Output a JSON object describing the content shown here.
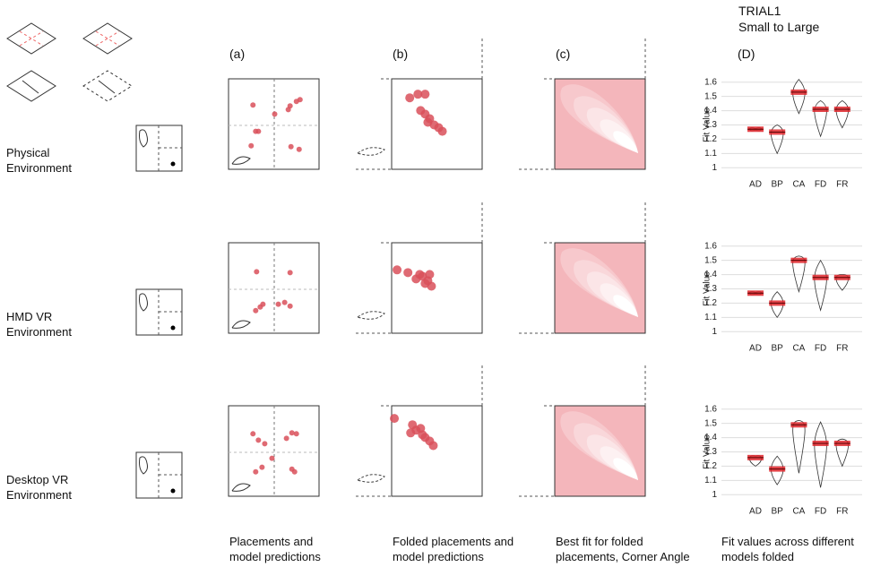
{
  "header": {
    "title": "TRIAL1",
    "subtitle": "Small to Large"
  },
  "panel_labels": [
    "(a)",
    "(b)",
    "(c)",
    "(D)"
  ],
  "captions": [
    "Placements and model predictions",
    "Folded placements and model predictions",
    "Best fit for folded placements, Corner Angle",
    "Fit values across different models folded"
  ],
  "rows": [
    {
      "label": "Physical Environment",
      "placements": {
        "x": [
          27,
          30,
          33,
          25,
          51,
          66,
          75,
          79,
          68,
          69,
          78
        ],
        "y": [
          71,
          42,
          42,
          26,
          61,
          66,
          75,
          77,
          70,
          25,
          22
        ]
      },
      "folded": {
        "x": [
          20,
          29,
          37,
          37,
          42,
          47,
          52,
          56,
          40,
          32
        ],
        "y": [
          79,
          83,
          83,
          61,
          56,
          49,
          46,
          42,
          52,
          65
        ]
      },
      "chart": {
        "type": "violin",
        "ylabel": "Fit Value",
        "categories": [
          "AD",
          "BP",
          "CA",
          "FD",
          "FR"
        ],
        "values": [
          1.27,
          1.25,
          1.53,
          1.41,
          1.41
        ],
        "mins": [
          1.265,
          1.1,
          1.38,
          1.22,
          1.28
        ],
        "maxs": [
          1.275,
          1.3,
          1.62,
          1.47,
          1.47
        ],
        "color": "#e0262b",
        "ylim": [
          0.97,
          1.63
        ],
        "yticks": [
          1,
          1.1,
          1.2,
          1.3,
          1.4,
          1.5,
          1.6
        ],
        "grid": true
      }
    },
    {
      "label": "HMD VR Environment",
      "placements": {
        "x": [
          31,
          68,
          35,
          30,
          55,
          62,
          68,
          38
        ],
        "y": [
          68,
          67,
          29,
          25,
          32,
          34,
          30,
          32
        ]
      },
      "folded": {
        "x": [
          6,
          18,
          27,
          34,
          40,
          44,
          37,
          31,
          42
        ],
        "y": [
          70,
          67,
          60,
          63,
          58,
          52,
          55,
          65,
          65
        ]
      },
      "chart": {
        "type": "violin",
        "ylabel": "Fit Value",
        "categories": [
          "AD",
          "BP",
          "CA",
          "FD",
          "FR"
        ],
        "values": [
          1.27,
          1.2,
          1.5,
          1.38,
          1.38
        ],
        "mins": [
          1.265,
          1.1,
          1.28,
          1.15,
          1.29
        ],
        "maxs": [
          1.275,
          1.28,
          1.53,
          1.5,
          1.4
        ],
        "color": "#e0262b",
        "ylim": [
          0.97,
          1.63
        ],
        "yticks": [
          1,
          1.1,
          1.2,
          1.3,
          1.4,
          1.5,
          1.6
        ],
        "grid": true
      }
    },
    {
      "label": "Desktop VR Environment",
      "placements": {
        "x": [
          27,
          33,
          40,
          37,
          30,
          48,
          70,
          64,
          75,
          70,
          73
        ],
        "y": [
          69,
          62,
          58,
          32,
          27,
          42,
          70,
          64,
          69,
          30,
          27
        ]
      },
      "folded": {
        "x": [
          3,
          23,
          27,
          34,
          42,
          46,
          32,
          37,
          21
        ],
        "y": [
          86,
          79,
          73,
          68,
          61,
          56,
          75,
          65,
          70
        ]
      },
      "chart": {
        "type": "violin",
        "ylabel": "Fit Value",
        "categories": [
          "AD",
          "BP",
          "CA",
          "FD",
          "FR"
        ],
        "values": [
          1.26,
          1.18,
          1.49,
          1.36,
          1.36
        ],
        "mins": [
          1.2,
          1.07,
          1.15,
          1.05,
          1.2
        ],
        "maxs": [
          1.27,
          1.27,
          1.52,
          1.51,
          1.39
        ],
        "color": "#e0262b",
        "ylim": [
          0.97,
          1.63
        ],
        "yticks": [
          1,
          1.1,
          1.2,
          1.3,
          1.4,
          1.5,
          1.6
        ],
        "grid": true
      }
    }
  ]
}
